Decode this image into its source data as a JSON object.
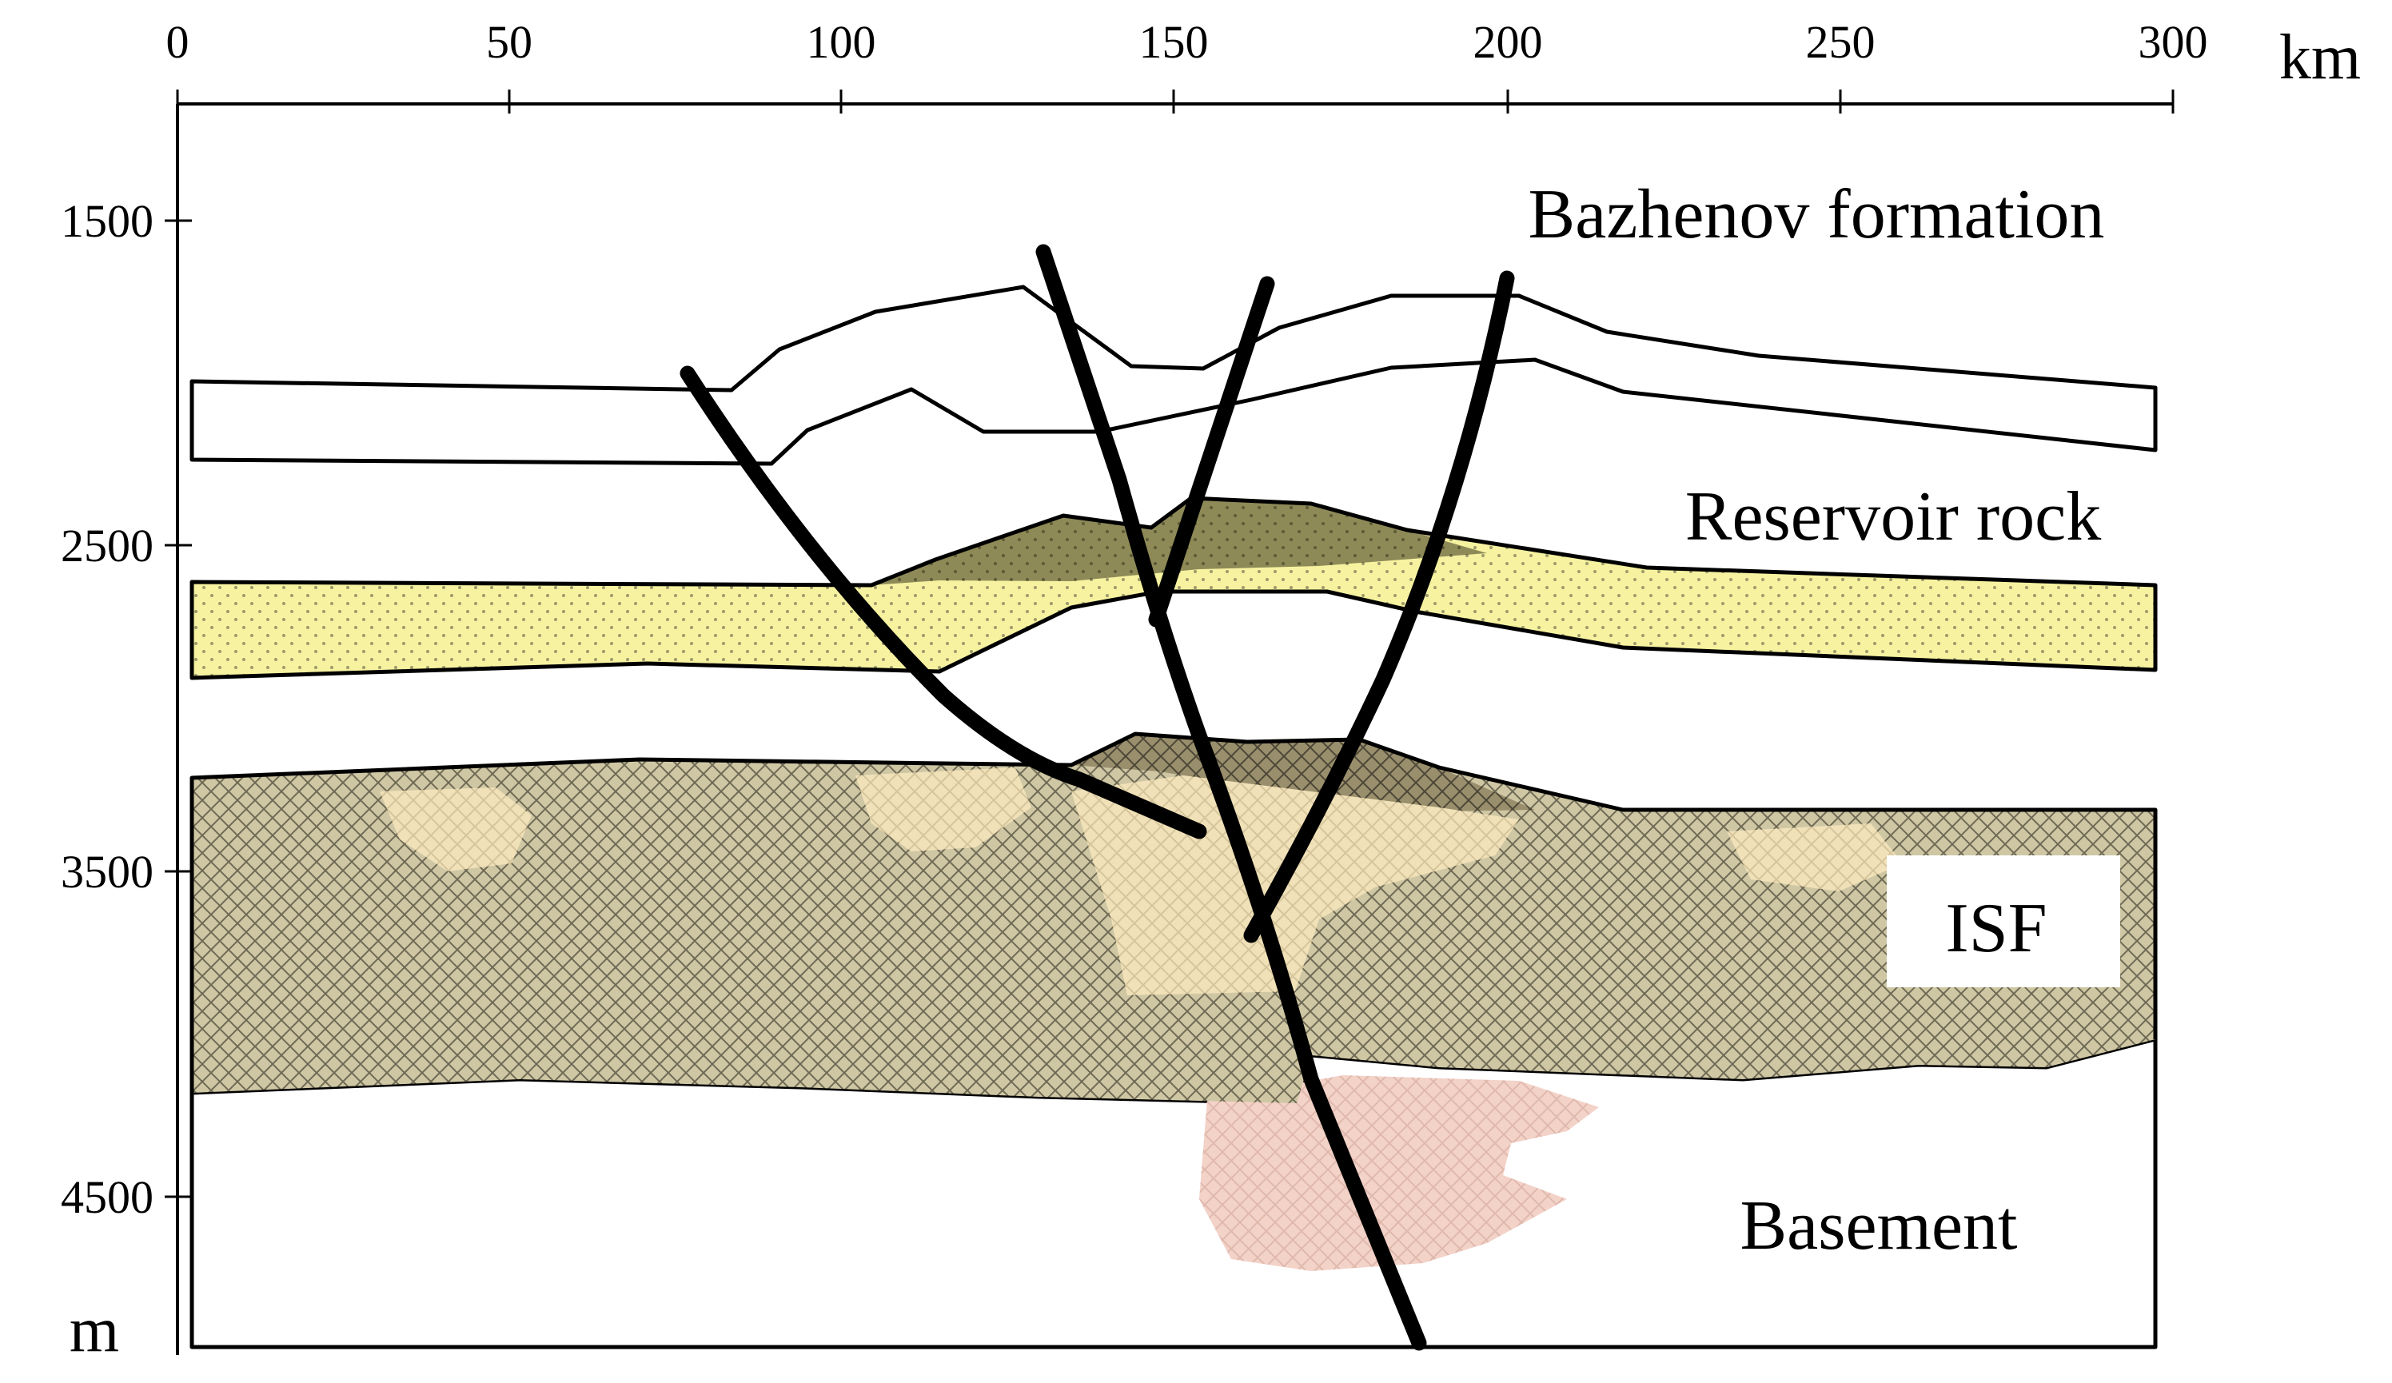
{
  "axes": {
    "x_unit": "km",
    "y_unit": "m",
    "x_ticks": [
      "0",
      "50",
      "100",
      "150",
      "200",
      "250",
      "300"
    ],
    "y_ticks": [
      "1500",
      "2500",
      "3500",
      "4500"
    ]
  },
  "labels": {
    "bazhenov": "Bazhenov formation",
    "reservoir": "Reservoir rock",
    "isf": "ISF",
    "basement": "Basement"
  },
  "colors": {
    "bazhenov": "#aed0ec",
    "reservoir": "#f6f2a0",
    "reservoir_dark": "#8e8a58",
    "isf": "#cfc7a4",
    "isf_dark": "#9a8f6c",
    "isf_light": "#f0e1b8",
    "basement": "#d8bfb3",
    "basement_light": "#f3d2c8"
  }
}
